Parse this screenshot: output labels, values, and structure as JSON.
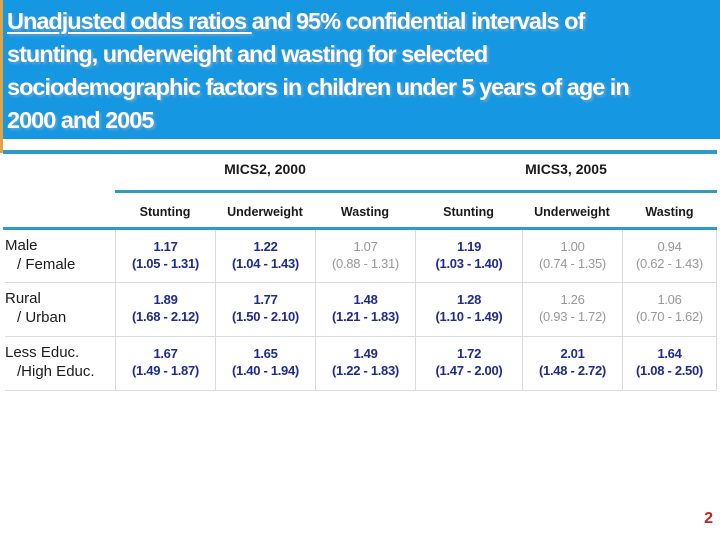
{
  "title": {
    "lines": [
      {
        "underlined": "Unadjusted odds ratios ",
        "text": "and 95% confidential intervals of"
      },
      {
        "text": "stunting, underweight and wasting for selected"
      },
      {
        "text": "sociodemographic factors in children under 5 years of age in"
      },
      {
        "text": "2000 and 2005"
      }
    ]
  },
  "table": {
    "group_headers": [
      "MICS2, 2000",
      "MICS3, 2005"
    ],
    "column_headers": [
      "Stunting",
      "Underweight",
      "Wasting",
      "Stunting",
      "Underweight",
      "Wasting"
    ],
    "rows": [
      {
        "label_line1": "Male",
        "label_line2": "/ Female",
        "cells": [
          {
            "value": "1.17",
            "ci": "(1.05 - 1.31)",
            "significant": true
          },
          {
            "value": "1.22",
            "ci": "(1.04 - 1.43)",
            "significant": true
          },
          {
            "value": "1.07",
            "ci": "(0.88 - 1.31)",
            "significant": false
          },
          {
            "value": "1.19",
            "ci": "(1.03 - 1.40)",
            "significant": true
          },
          {
            "value": "1.00",
            "ci": "(0.74 - 1.35)",
            "significant": false
          },
          {
            "value": "0.94",
            "ci": "(0.62 - 1.43)",
            "significant": false
          }
        ]
      },
      {
        "label_line1": "Rural",
        "label_line2": "/ Urban",
        "cells": [
          {
            "value": "1.89",
            "ci": "(1.68 - 2.12)",
            "significant": true
          },
          {
            "value": "1.77",
            "ci": "(1.50 - 2.10)",
            "significant": true
          },
          {
            "value": "1.48",
            "ci": "(1.21 - 1.83)",
            "significant": true
          },
          {
            "value": "1.28",
            "ci": "(1.10 - 1.49)",
            "significant": true
          },
          {
            "value": "1.26",
            "ci": "(0.93 - 1.72)",
            "significant": false
          },
          {
            "value": "1.06",
            "ci": "(0.70 - 1.62)",
            "significant": false
          }
        ]
      },
      {
        "label_line1": "Less Educ.",
        "label_line2": "/High Educ.",
        "cells": [
          {
            "value": "1.67",
            "ci": "(1.49 - 1.87)",
            "significant": true
          },
          {
            "value": "1.65",
            "ci": "(1.40 - 1.94)",
            "significant": true
          },
          {
            "value": "1.49",
            "ci": "(1.22 - 1.83)",
            "significant": true
          },
          {
            "value": "1.72",
            "ci": "(1.47 - 2.00)",
            "significant": true
          },
          {
            "value": "2.01",
            "ci": "(1.48 - 2.72)",
            "significant": true
          },
          {
            "value": "1.64",
            "ci": "(1.08 - 2.50)",
            "significant": true
          }
        ]
      }
    ]
  },
  "page": {
    "number": "2"
  },
  "colors": {
    "title-bg": "#1697E2",
    "title-text": "#FFFFFF",
    "accent-rule": "#2E9BC6",
    "orange-accent": "#E8A23C",
    "significant-value": "#1E2B8F",
    "nonsignificant-value": "#97989A",
    "cell-border": "#D8DCE0",
    "header-text": "#1A1A1A",
    "page-number": "#C2211D"
  }
}
